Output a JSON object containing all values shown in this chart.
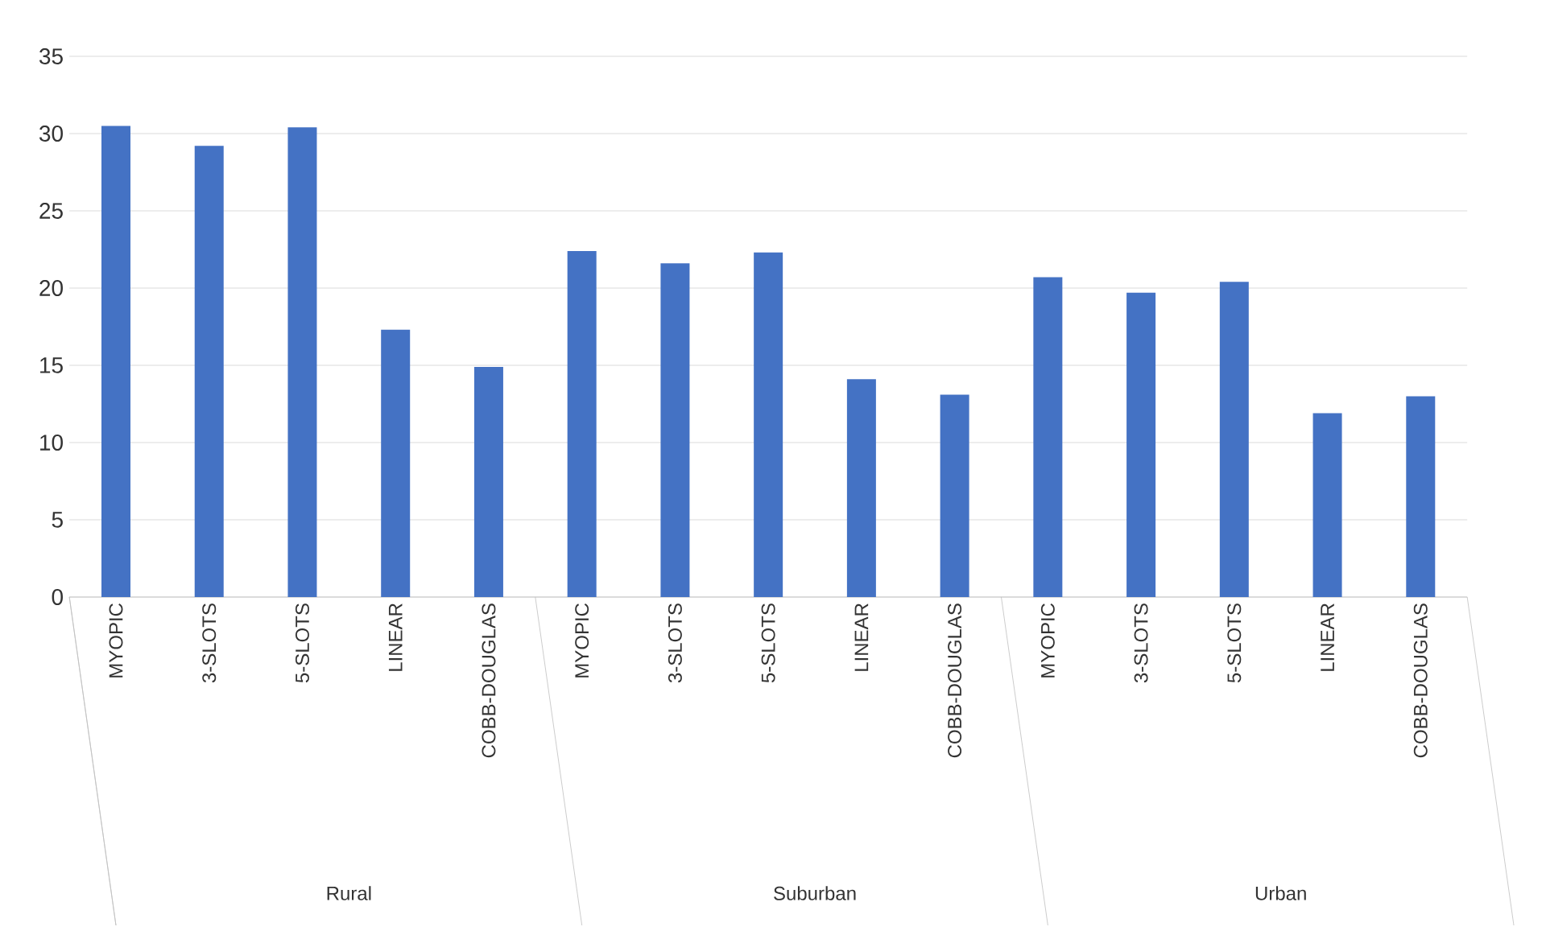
{
  "chart_data": {
    "type": "bar",
    "categories": [
      "MYOPIC",
      "3-SLOTS",
      "5-SLOTS",
      "LINEAR",
      "COBB-DOUGLAS",
      "MYOPIC",
      "3-SLOTS",
      "5-SLOTS",
      "LINEAR",
      "COBB-DOUGLAS",
      "MYOPIC",
      "3-SLOTS",
      "5-SLOTS",
      "LINEAR",
      "COBB-DOUGLAS"
    ],
    "values": [
      30.5,
      29.2,
      30.4,
      17.3,
      14.9,
      22.4,
      21.6,
      22.3,
      14.1,
      13.1,
      20.7,
      19.7,
      20.4,
      11.9,
      13.0
    ],
    "color": "#4472c4",
    "annotations": [
      "Rural",
      "Suburban",
      "Urban"
    ],
    "ylim": [
      0,
      35
    ],
    "yticks": [
      0,
      5,
      10,
      15,
      20,
      25,
      30,
      35
    ],
    "grid": "y"
  }
}
